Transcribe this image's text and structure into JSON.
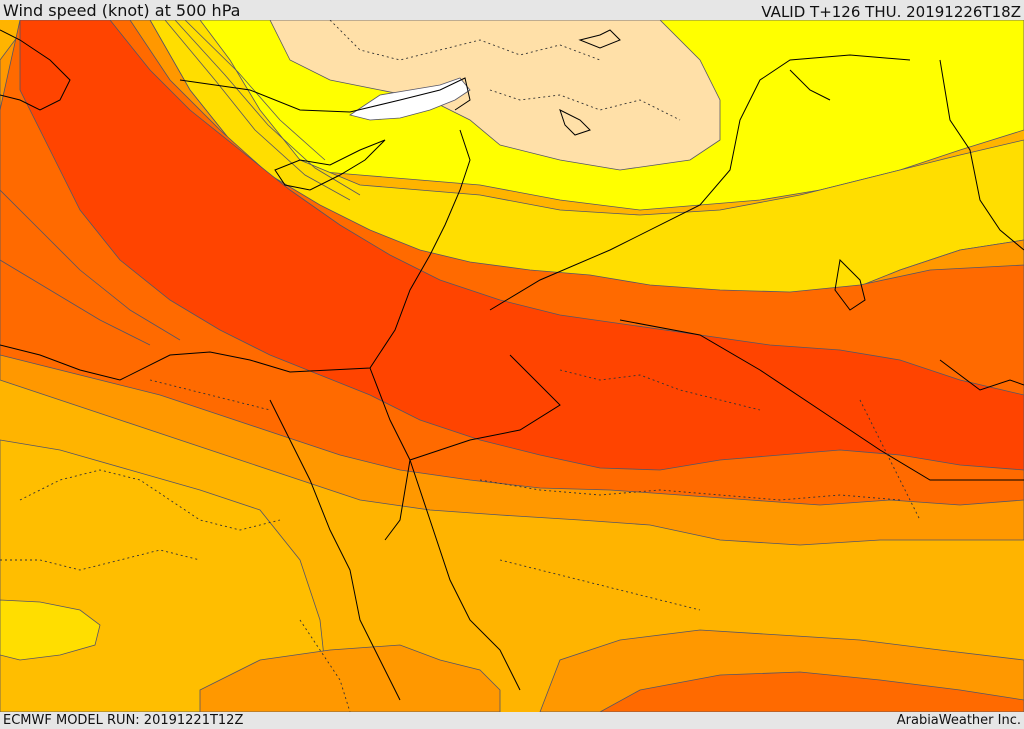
{
  "header": {
    "title": "Wind speed (knot) at 500 hPa",
    "valid": "VALID T+126 THU. 20191226T18Z"
  },
  "footer": {
    "model_run": "ECMWF MODEL RUN: 20191221T12Z",
    "credit": "ArabiaWeather Inc."
  },
  "colors": {
    "band_lowest": "#ffffff",
    "band_1": "#ffe0a8",
    "band_2": "#ffff00",
    "band_3": "#ffde00",
    "band_4": "#ffbe00",
    "band_5": "#ff9800",
    "band_6": "#ff6a00",
    "band_7": "#ff4400",
    "contour": "#555566",
    "coastline": "#000000"
  }
}
